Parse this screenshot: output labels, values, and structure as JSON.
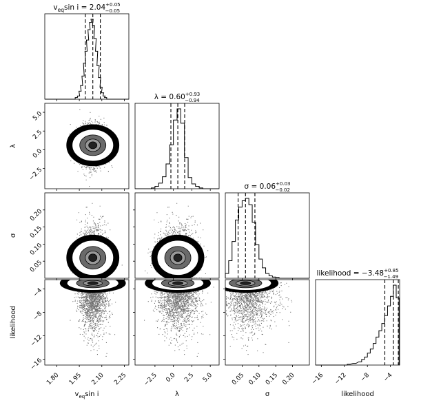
{
  "chart_data": {
    "type": "corner",
    "grid": false,
    "parameters": [
      {
        "key": "veq",
        "title_main": "v",
        "title_sub": "eq",
        "title_rest": "sin i",
        "title_value": " = 2.04",
        "title_plus": "+0.05",
        "title_minus": "−0.05",
        "axis_label_main": "v",
        "axis_label_sub": "eq",
        "axis_label_rest": "sin i",
        "range": [
          1.72,
          2.28
        ],
        "ticks": [
          1.8,
          1.95,
          2.1,
          2.25
        ],
        "tick_labels": [
          "1.80",
          "1.95",
          "2.10",
          "2.25"
        ],
        "quantiles": [
          1.99,
          2.04,
          2.09
        ],
        "hist": [
          {
            "x": 1.93,
            "h": 0.02
          },
          {
            "x": 1.945,
            "h": 0.04
          },
          {
            "x": 1.955,
            "h": 0.1
          },
          {
            "x": 1.965,
            "h": 0.17
          },
          {
            "x": 1.975,
            "h": 0.29
          },
          {
            "x": 1.985,
            "h": 0.45
          },
          {
            "x": 1.995,
            "h": 0.6
          },
          {
            "x": 2.005,
            "h": 0.74
          },
          {
            "x": 2.015,
            "h": 0.87
          },
          {
            "x": 2.025,
            "h": 0.96
          },
          {
            "x": 2.035,
            "h": 1.0
          },
          {
            "x": 2.045,
            "h": 0.92
          },
          {
            "x": 2.055,
            "h": 0.76
          },
          {
            "x": 2.065,
            "h": 0.6
          },
          {
            "x": 2.075,
            "h": 0.42
          },
          {
            "x": 2.085,
            "h": 0.27
          },
          {
            "x": 2.095,
            "h": 0.15
          },
          {
            "x": 2.105,
            "h": 0.08
          },
          {
            "x": 2.115,
            "h": 0.04
          },
          {
            "x": 2.125,
            "h": 0.02
          }
        ],
        "mean": 2.04,
        "sd": 0.045
      },
      {
        "key": "lambda",
        "title_main": "λ",
        "title_value": " = 0.60",
        "title_plus": "+0.93",
        "title_minus": "−0.94",
        "axis_label_main": "λ",
        "range": [
          -5.2,
          6.2
        ],
        "ticks": [
          -2.5,
          0.0,
          2.5,
          5.0
        ],
        "tick_labels": [
          "−2.5",
          "0.0",
          "2.5",
          "5.0"
        ],
        "quantiles": [
          -0.34,
          0.6,
          1.53
        ],
        "hist": [
          {
            "x": -2.75,
            "h": 0.01
          },
          {
            "x": -2.25,
            "h": 0.03
          },
          {
            "x": -1.75,
            "h": 0.07
          },
          {
            "x": -1.25,
            "h": 0.15
          },
          {
            "x": -0.75,
            "h": 0.31
          },
          {
            "x": -0.25,
            "h": 0.55
          },
          {
            "x": 0.25,
            "h": 0.86
          },
          {
            "x": 0.75,
            "h": 1.0
          },
          {
            "x": 1.25,
            "h": 0.82
          },
          {
            "x": 1.75,
            "h": 0.39
          },
          {
            "x": 2.25,
            "h": 0.14
          },
          {
            "x": 2.75,
            "h": 0.06
          },
          {
            "x": 3.25,
            "h": 0.03
          },
          {
            "x": 3.75,
            "h": 0.01
          }
        ],
        "mean": 0.6,
        "sd": 1.35
      },
      {
        "key": "sigma",
        "title_main": "σ",
        "title_value": " = 0.06",
        "title_plus": "+0.03",
        "title_minus": "−0.02",
        "axis_label_main": "σ",
        "range": [
          0.0,
          0.25
        ],
        "ticks": [
          0.05,
          0.1,
          0.15,
          0.2
        ],
        "tick_labels": [
          "0.05",
          "0.10",
          "0.15",
          "0.20"
        ],
        "quantiles": [
          0.038,
          0.06,
          0.088
        ],
        "hist": [
          {
            "x": 0.005,
            "h": 0.06
          },
          {
            "x": 0.015,
            "h": 0.22
          },
          {
            "x": 0.025,
            "h": 0.46
          },
          {
            "x": 0.035,
            "h": 0.73
          },
          {
            "x": 0.045,
            "h": 0.89
          },
          {
            "x": 0.055,
            "h": 0.97
          },
          {
            "x": 0.065,
            "h": 1.0
          },
          {
            "x": 0.075,
            "h": 0.92
          },
          {
            "x": 0.085,
            "h": 0.7
          },
          {
            "x": 0.095,
            "h": 0.42
          },
          {
            "x": 0.105,
            "h": 0.24
          },
          {
            "x": 0.115,
            "h": 0.13
          },
          {
            "x": 0.125,
            "h": 0.06
          },
          {
            "x": 0.135,
            "h": 0.03
          },
          {
            "x": 0.145,
            "h": 0.015
          },
          {
            "x": 0.155,
            "h": 0.01
          }
        ],
        "mean": 0.065,
        "sd": 0.028
      },
      {
        "key": "likelihood",
        "title_main": "likelihood",
        "title_value": " = −3.48",
        "title_plus": "+0.85",
        "title_minus": "−1.49",
        "axis_label_main": "likelihood",
        "range": [
          -17.0,
          -2.4
        ],
        "ticks": [
          -16,
          -12,
          -8,
          -4
        ],
        "tick_labels": [
          "−16",
          "−12",
          "−8",
          "−4"
        ],
        "quantiles": [
          -4.97,
          -3.48,
          -2.63
        ],
        "hist": [
          {
            "x": -11.25,
            "h": 0.01
          },
          {
            "x": -10.25,
            "h": 0.02
          },
          {
            "x": -9.25,
            "h": 0.04
          },
          {
            "x": -8.75,
            "h": 0.07
          },
          {
            "x": -8.25,
            "h": 0.1
          },
          {
            "x": -7.75,
            "h": 0.15
          },
          {
            "x": -7.25,
            "h": 0.2
          },
          {
            "x": -6.75,
            "h": 0.27
          },
          {
            "x": -6.25,
            "h": 0.35
          },
          {
            "x": -5.75,
            "h": 0.43
          },
          {
            "x": -5.25,
            "h": 0.52
          },
          {
            "x": -4.75,
            "h": 0.62
          },
          {
            "x": -4.25,
            "h": 0.74
          },
          {
            "x": -3.75,
            "h": 0.86
          },
          {
            "x": -3.25,
            "h": 1.0
          },
          {
            "x": -2.75,
            "h": 0.84
          }
        ],
        "bin_width": 0.5,
        "mode": -2.6,
        "scale": 3.0
      }
    ]
  }
}
